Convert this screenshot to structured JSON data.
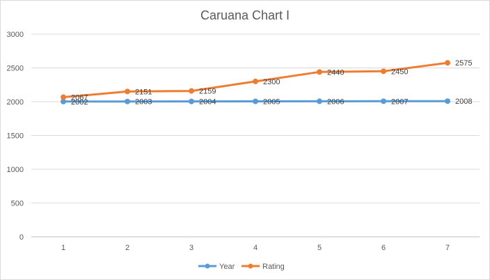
{
  "chart_data": {
    "type": "line",
    "title": "Caruana Chart I",
    "xlabel": "",
    "ylabel": "",
    "categories": [
      "1",
      "2",
      "3",
      "4",
      "5",
      "6",
      "7"
    ],
    "ylim": [
      0,
      3000
    ],
    "yticks": [
      "0",
      "500",
      "1000",
      "1500",
      "2000",
      "2500",
      "3000"
    ],
    "grid": true,
    "legend_position": "bottom",
    "series": [
      {
        "name": "Year",
        "color": "#5B9BD5",
        "values": [
          2002,
          2003,
          2004,
          2005,
          2006,
          2007,
          2008
        ],
        "labels": [
          "2002",
          "2003",
          "2004",
          "2005",
          "2006",
          "2007",
          "2008"
        ]
      },
      {
        "name": "Rating",
        "color": "#ED7D31",
        "values": [
          2067,
          2151,
          2159,
          2300,
          2440,
          2450,
          2575
        ],
        "labels": [
          "2067",
          "2151",
          "2159",
          "2300",
          "2440",
          "2450",
          "2575"
        ]
      }
    ]
  }
}
